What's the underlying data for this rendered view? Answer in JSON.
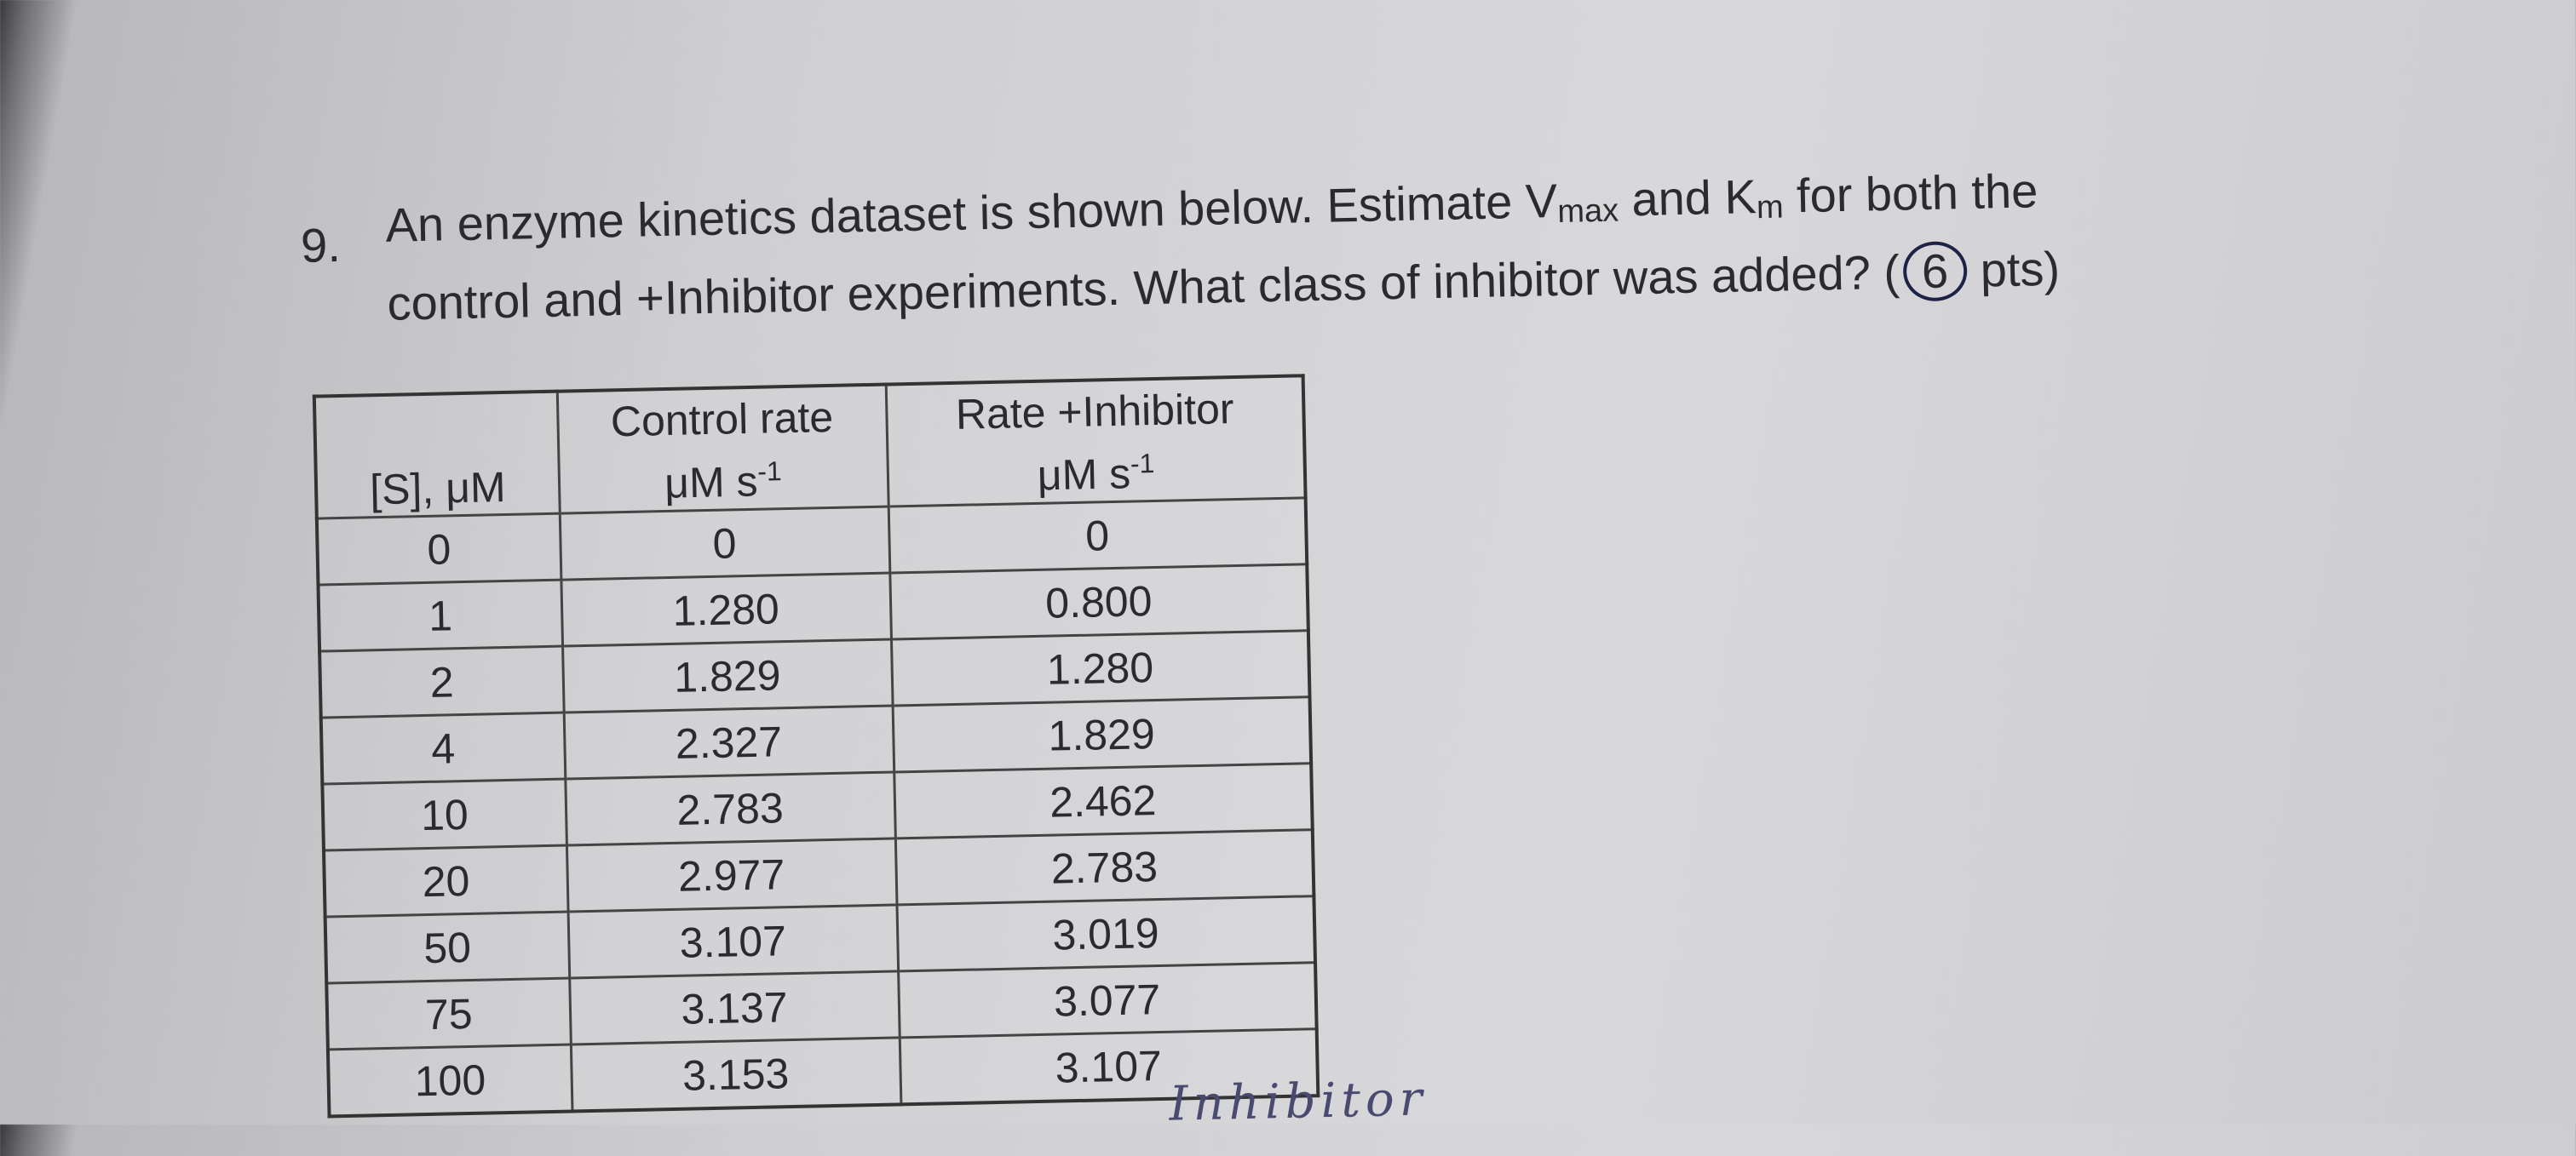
{
  "question": {
    "number": "9.",
    "line1": {
      "a": "An enzyme kinetics dataset is shown below. Estimate V",
      "sub1": "max",
      "b": " and K",
      "sub2": "m",
      "c": " for both the"
    },
    "line2": {
      "a": "control and +Inhibitor experiments. What class of inhibitor was added? (",
      "points": "6",
      "b": " pts)"
    }
  },
  "table": {
    "header": [
      {
        "label": "[S], μM"
      },
      {
        "title": "Control rate",
        "unit": "μM s",
        "exponent": "-1"
      },
      {
        "title": "Rate +Inhibitor",
        "unit": "μM s",
        "exponent": "-1"
      }
    ],
    "rows": [
      [
        "0",
        "0",
        "0"
      ],
      [
        "1",
        "1.280",
        "0.800"
      ],
      [
        "2",
        "1.829",
        "1.280"
      ],
      [
        "4",
        "2.327",
        "1.829"
      ],
      [
        "10",
        "2.783",
        "2.462"
      ],
      [
        "20",
        "2.977",
        "2.783"
      ],
      [
        "50",
        "3.107",
        "3.019"
      ],
      [
        "75",
        "3.137",
        "3.077"
      ],
      [
        "100",
        "3.153",
        "3.107"
      ]
    ]
  },
  "handwriting": "Inhibitor"
}
